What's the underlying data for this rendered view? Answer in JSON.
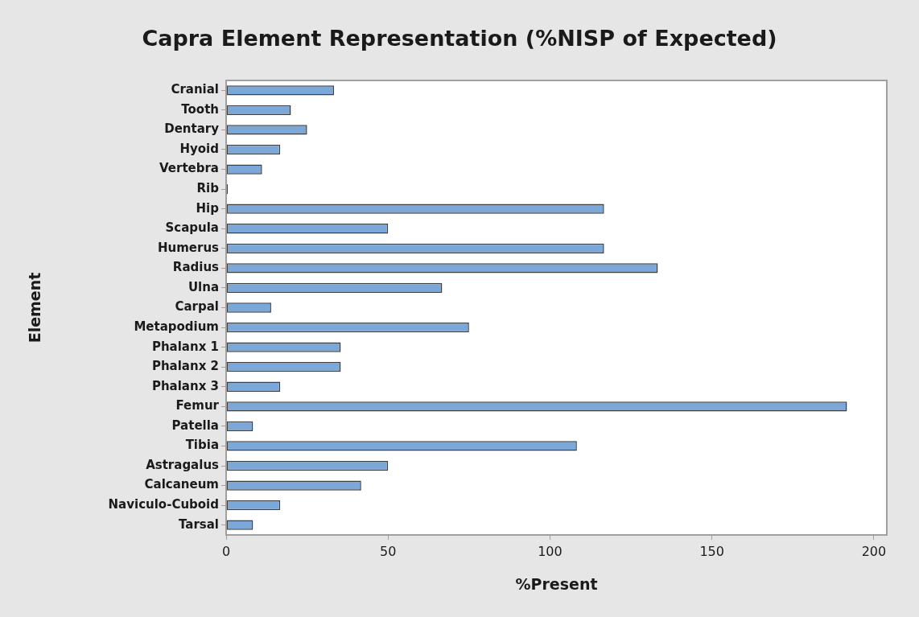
{
  "chart_data": {
    "type": "bar",
    "orientation": "horizontal",
    "title": "Capra Element Representation (%NISP of Expected)",
    "xlabel": "%Present",
    "ylabel": "Element",
    "categories": [
      "Cranial",
      "Tooth",
      "Dentary",
      "Hyoid",
      "Vertebra",
      "Rib",
      "Hip",
      "Scapula",
      "Humerus",
      "Radius",
      "Ulna",
      "Carpal",
      "Metapodium",
      "Phalanx 1",
      "Phalanx 2",
      "Phalanx 3",
      "Femur",
      "Patella",
      "Tibia",
      "Astragalus",
      "Calcaneum",
      "Naviculo-Cuboid",
      "Tarsal"
    ],
    "values": [
      33.3,
      20,
      25,
      16.7,
      11.1,
      0.5,
      116.7,
      50,
      116.7,
      133.3,
      66.7,
      13.9,
      75,
      35.4,
      35.4,
      16.7,
      191.7,
      8.3,
      108.3,
      50,
      41.7,
      16.7,
      8.3
    ],
    "colors": [
      "#7ba7d9",
      "#7ba7d9",
      "#7ba7d9",
      "#7ba7d9",
      "#7ba7d9",
      "#404040",
      "#7ba7d9",
      "#7ba7d9",
      "#7ba7d9",
      "#7ba7d9",
      "#7ba7d9",
      "#7ba7d9",
      "#7ba7d9",
      "#7ba7d9",
      "#7ba7d9",
      "#7ba7d9",
      "#7ba7d9",
      "#7ba7d9",
      "#7ba7d9",
      "#7ba7d9",
      "#7ba7d9",
      "#7ba7d9",
      "#7ba7d9"
    ],
    "xlim": [
      0,
      204
    ],
    "xticks": [
      0,
      50,
      100,
      150,
      200
    ],
    "grid": false,
    "legend": false
  }
}
